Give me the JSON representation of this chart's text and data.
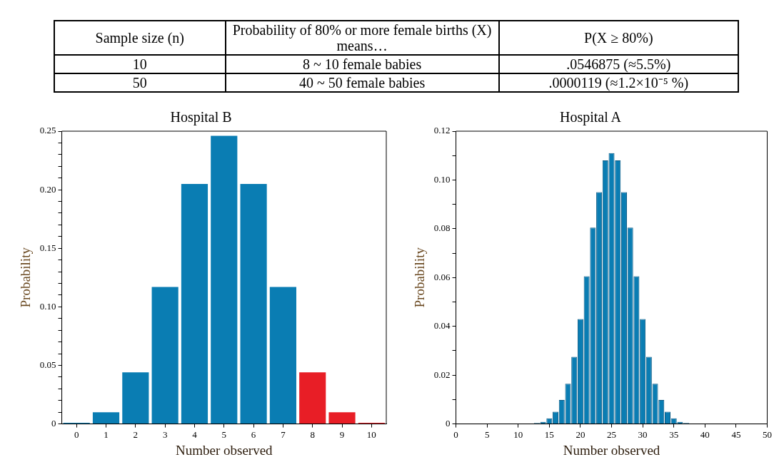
{
  "chart_data": [
    {
      "type": "other",
      "annotations": [
        "Sample size (n)",
        "Probability of 80% or more female births (X) means…",
        "P(X ≥ 80%)",
        "10",
        "8 ~ 10 female babies",
        ".0546875 (≈5.5%)",
        "50",
        "40 ~ 50 female babies",
        ".0000119 (≈1.2×10⁻⁵ %)"
      ]
    },
    {
      "type": "bar",
      "title": "Hospital B",
      "xlabel": "Number observed",
      "ylabel": "Probability",
      "categories": [
        "0",
        "1",
        "2",
        "3",
        "4",
        "5",
        "6",
        "7",
        "8",
        "9",
        "10"
      ],
      "values": [
        0.001,
        0.01,
        0.044,
        0.117,
        0.205,
        0.246,
        0.205,
        0.117,
        0.044,
        0.01,
        0.001
      ],
      "colors": [
        "#0a7db3",
        "#0a7db3",
        "#0a7db3",
        "#0a7db3",
        "#0a7db3",
        "#0a7db3",
        "#0a7db3",
        "#0a7db3",
        "#e81e26",
        "#e81e26",
        "#e81e26"
      ],
      "ylim": [
        0,
        0.25
      ],
      "yticks": [
        {
          "value": 0,
          "label": "0"
        },
        {
          "value": 0.01,
          "label": null
        },
        {
          "value": 0.02,
          "label": null
        },
        {
          "value": 0.03,
          "label": null
        },
        {
          "value": 0.04,
          "label": null
        },
        {
          "value": 0.05,
          "label": "0.05"
        },
        {
          "value": 0.06,
          "label": null
        },
        {
          "value": 0.07,
          "label": null
        },
        {
          "value": 0.08,
          "label": null
        },
        {
          "value": 0.09,
          "label": null
        },
        {
          "value": 0.1,
          "label": "0.10"
        },
        {
          "value": 0.11,
          "label": null
        },
        {
          "value": 0.12,
          "label": null
        },
        {
          "value": 0.13,
          "label": null
        },
        {
          "value": 0.14,
          "label": null
        },
        {
          "value": 0.15,
          "label": "0.15"
        },
        {
          "value": 0.16,
          "label": null
        },
        {
          "value": 0.17,
          "label": null
        },
        {
          "value": 0.18,
          "label": null
        },
        {
          "value": 0.19,
          "label": null
        },
        {
          "value": 0.2,
          "label": "0.20"
        },
        {
          "value": 0.21,
          "label": null
        },
        {
          "value": 0.22,
          "label": null
        },
        {
          "value": 0.23,
          "label": null
        },
        {
          "value": 0.24,
          "label": null
        },
        {
          "value": 0.25,
          "label": "0.25"
        }
      ],
      "grid": false,
      "legend": false
    },
    {
      "type": "bar",
      "title": "Hospital A",
      "xlabel": "Number observed",
      "ylabel": "Probability",
      "x": [
        13,
        14,
        15,
        16,
        17,
        18,
        19,
        20,
        21,
        22,
        23,
        24,
        25,
        26,
        27,
        28,
        29,
        30,
        31,
        32,
        33,
        34,
        35,
        36,
        37
      ],
      "values": [
        0.0004,
        0.0008,
        0.0023,
        0.005,
        0.0098,
        0.0165,
        0.0275,
        0.043,
        0.0605,
        0.0805,
        0.095,
        0.108,
        0.111,
        0.108,
        0.095,
        0.0805,
        0.0605,
        0.043,
        0.0275,
        0.0165,
        0.0098,
        0.005,
        0.0023,
        0.0008,
        0.0004
      ],
      "color": "#0a7db3",
      "xlim": [
        0,
        50
      ],
      "xticks": [
        0,
        5,
        10,
        15,
        20,
        25,
        30,
        35,
        40,
        45,
        50
      ],
      "ylim": [
        0,
        0.12
      ],
      "yticks": [
        {
          "value": 0,
          "label": "0"
        },
        {
          "value": 0.01,
          "label": null
        },
        {
          "value": 0.02,
          "label": "0.02"
        },
        {
          "value": 0.03,
          "label": null
        },
        {
          "value": 0.04,
          "label": "0.04"
        },
        {
          "value": 0.05,
          "label": null
        },
        {
          "value": 0.06,
          "label": "0.06"
        },
        {
          "value": 0.07,
          "label": null
        },
        {
          "value": 0.08,
          "label": "0.08"
        },
        {
          "value": 0.09,
          "label": null
        },
        {
          "value": 0.1,
          "label": "0.10"
        },
        {
          "value": 0.11,
          "label": null
        },
        {
          "value": 0.12,
          "label": "0.12"
        }
      ],
      "grid": false,
      "legend": false
    }
  ]
}
